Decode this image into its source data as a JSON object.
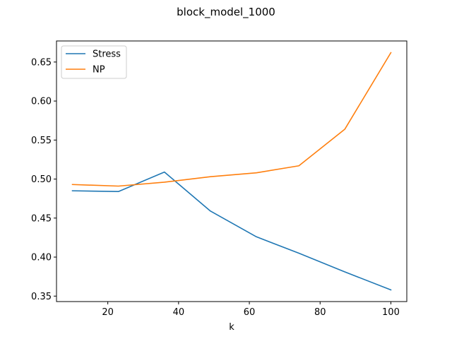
{
  "chart_data": {
    "type": "line",
    "title": "block_model_1000",
    "xlabel": "k",
    "ylabel": "",
    "xlim": [
      5.5,
      104.5
    ],
    "ylim": [
      0.343,
      0.677
    ],
    "xticks": [
      20,
      40,
      60,
      80,
      100
    ],
    "yticks": [
      0.35,
      0.4,
      0.45,
      0.5,
      0.55,
      0.6,
      0.65
    ],
    "ytick_labels": [
      "0.35",
      "0.40",
      "0.45",
      "0.50",
      "0.55",
      "0.60",
      "0.65"
    ],
    "xtick_labels": [
      "20",
      "40",
      "60",
      "80",
      "100"
    ],
    "x": [
      10,
      23,
      36,
      49,
      62,
      74,
      87,
      100
    ],
    "grid": false,
    "legend_position": "top-left",
    "series": [
      {
        "name": "Stress",
        "color": "#1f77b4",
        "values": [
          0.485,
          0.484,
          0.509,
          0.459,
          0.426,
          0.405,
          0.381,
          0.358
        ]
      },
      {
        "name": "NP",
        "color": "#ff7f0e",
        "values": [
          0.493,
          0.491,
          0.496,
          0.503,
          0.508,
          0.517,
          0.564,
          0.662
        ]
      }
    ]
  }
}
